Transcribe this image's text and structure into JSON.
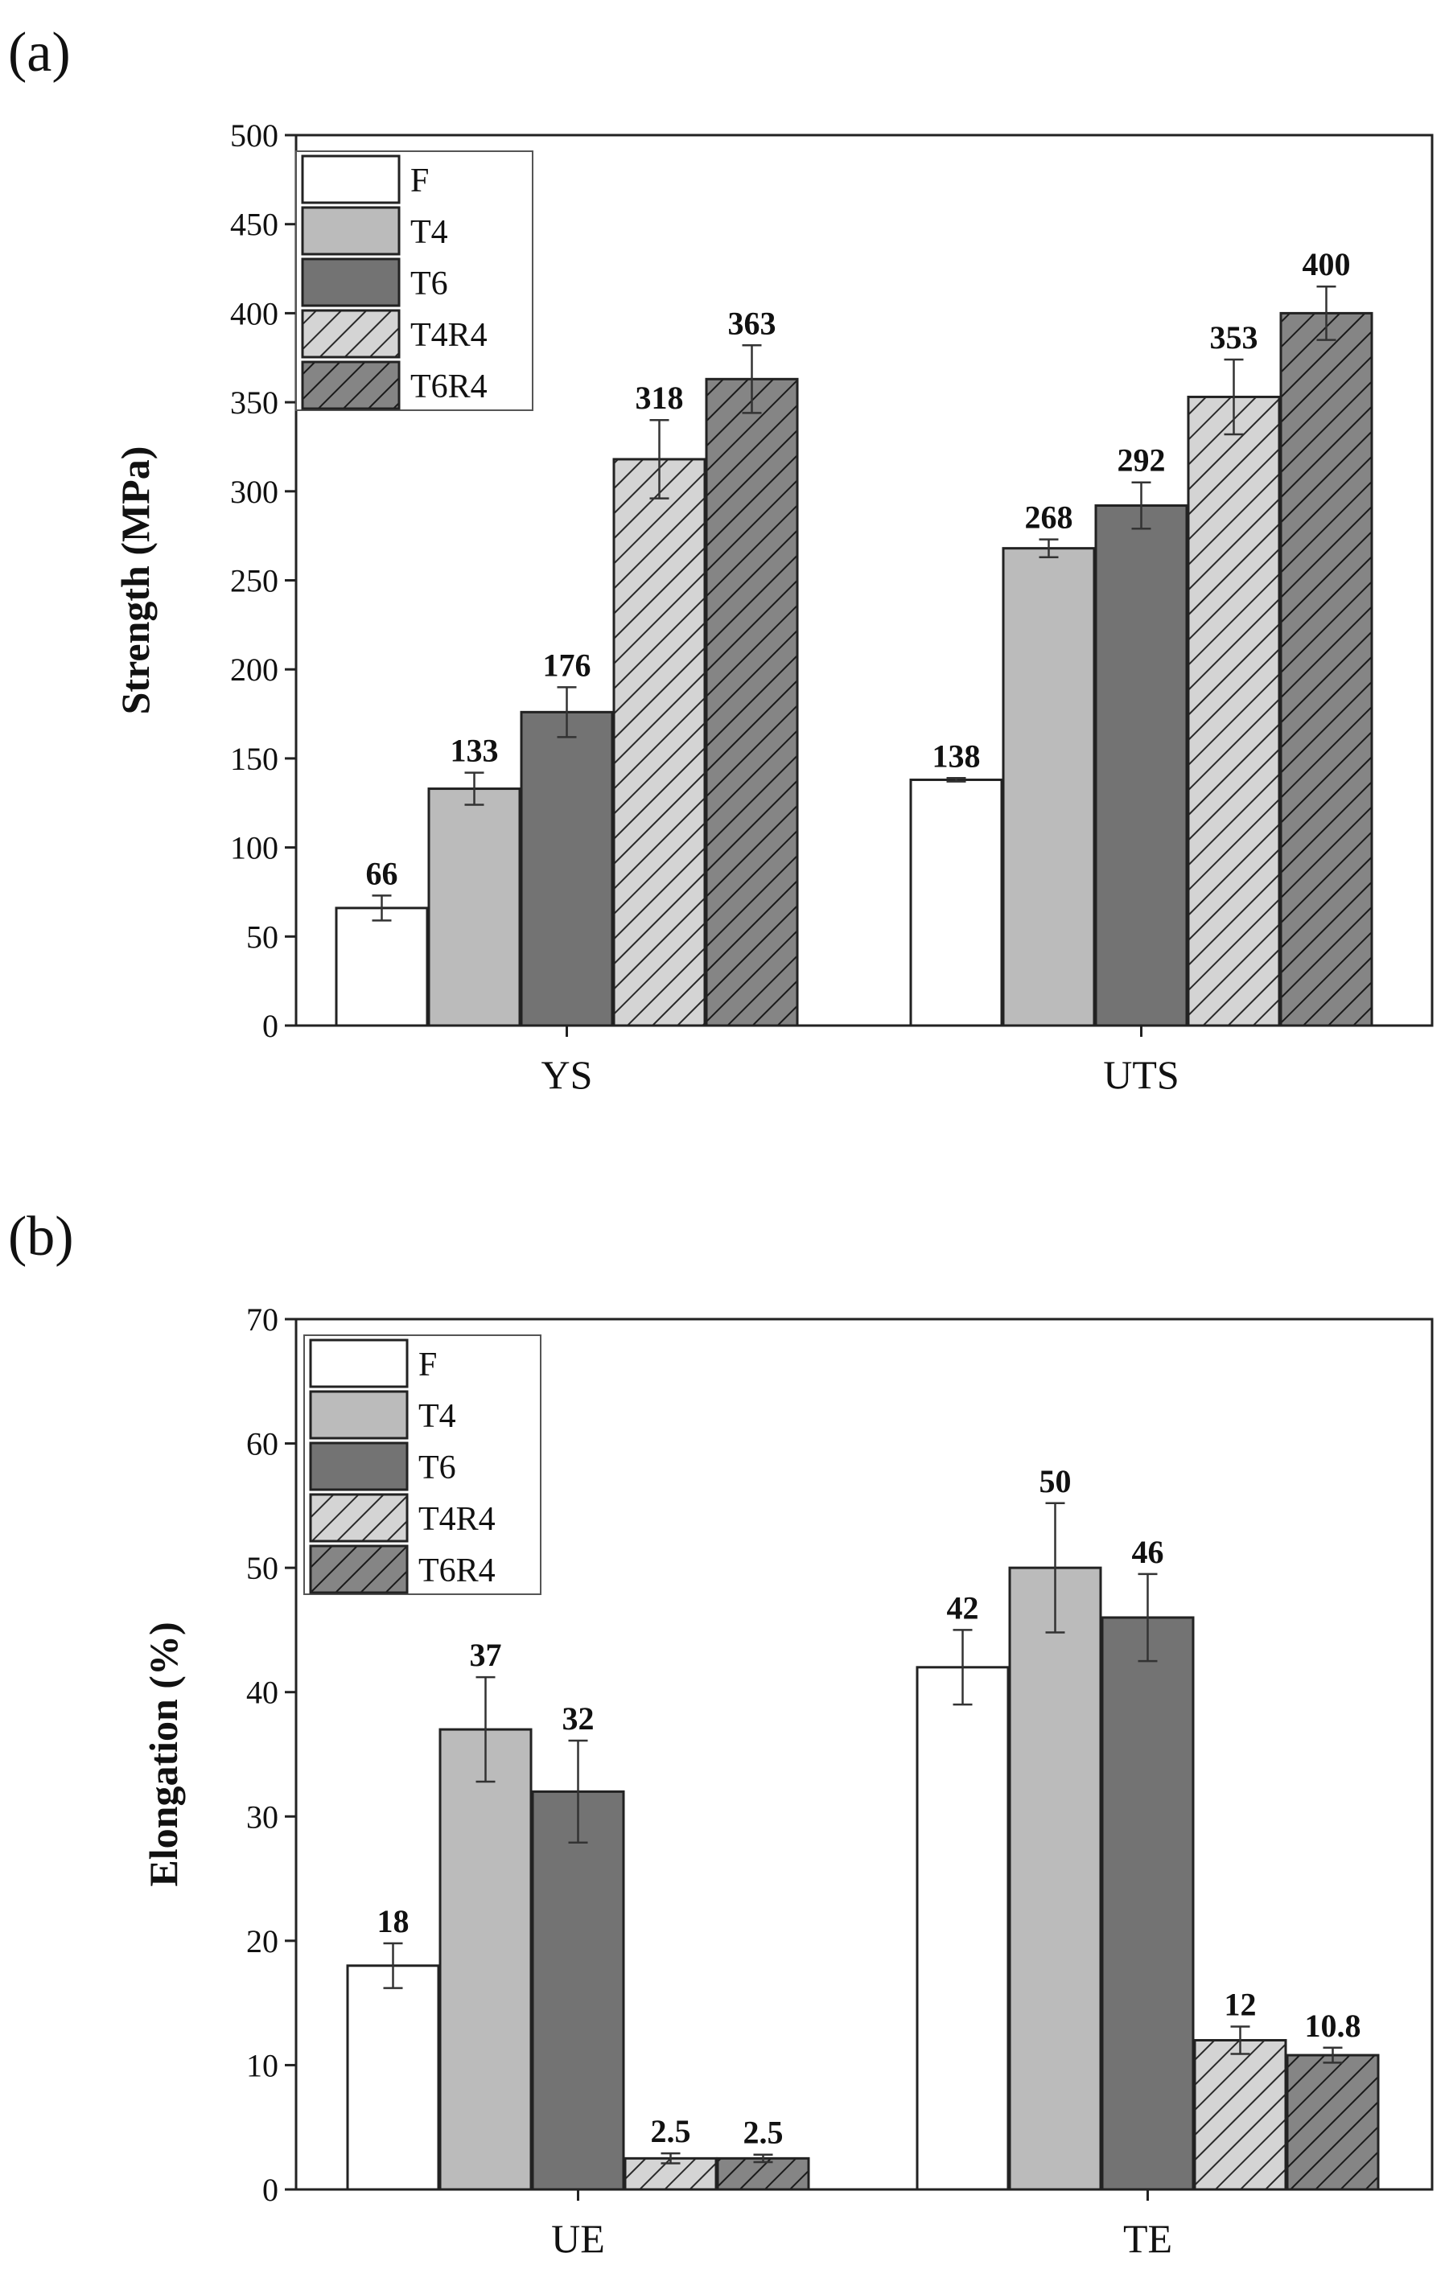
{
  "colors": {
    "F": "#ffffff",
    "T4": "#bbbbbb",
    "T6": "#737373",
    "T4R4": "#d4d4d4",
    "T6R4": "#858585",
    "stroke": "#222222",
    "hatch": "#2a2a2a"
  },
  "chart_data": [
    {
      "panel_label": "(a)",
      "type": "bar",
      "ylabel": "Strength (MPa)",
      "xlabel": "",
      "ylim": [
        0,
        500
      ],
      "yticks": [
        0,
        50,
        100,
        150,
        200,
        250,
        300,
        350,
        400,
        450,
        500
      ],
      "categories": [
        "YS",
        "UTS"
      ],
      "legend_position": "top-left",
      "series": [
        {
          "name": "F",
          "key": "F",
          "hatched": false,
          "values": [
            66,
            138
          ],
          "errors": [
            7,
            1
          ],
          "labels": [
            "66",
            "138"
          ]
        },
        {
          "name": "T4",
          "key": "T4",
          "hatched": false,
          "values": [
            133,
            268
          ],
          "errors": [
            9,
            5
          ],
          "labels": [
            "133",
            "268"
          ]
        },
        {
          "name": "T6",
          "key": "T6",
          "hatched": false,
          "values": [
            176,
            292
          ],
          "errors": [
            14,
            13
          ],
          "labels": [
            "176",
            "292"
          ]
        },
        {
          "name": "T4R4",
          "key": "T4R4",
          "hatched": true,
          "values": [
            318,
            353
          ],
          "errors": [
            22,
            21
          ],
          "labels": [
            "318",
            "353"
          ]
        },
        {
          "name": "T6R4",
          "key": "T6R4",
          "hatched": true,
          "values": [
            363,
            400
          ],
          "errors": [
            19,
            15
          ],
          "labels": [
            "363",
            "400"
          ]
        }
      ]
    },
    {
      "panel_label": "(b)",
      "type": "bar",
      "ylabel": "Elongation (%)",
      "xlabel": "",
      "ylim": [
        0,
        70
      ],
      "yticks": [
        0,
        10,
        20,
        30,
        40,
        50,
        60,
        70
      ],
      "categories": [
        "UE",
        "TE"
      ],
      "legend_position": "top-left",
      "series": [
        {
          "name": "F",
          "key": "F",
          "hatched": false,
          "values": [
            18,
            42
          ],
          "errors": [
            1.8,
            3
          ],
          "labels": [
            "18",
            "42"
          ]
        },
        {
          "name": "T4",
          "key": "T4",
          "hatched": false,
          "values": [
            37,
            50
          ],
          "errors": [
            4.2,
            5.2
          ],
          "labels": [
            "37",
            "50"
          ]
        },
        {
          "name": "T6",
          "key": "T6",
          "hatched": false,
          "values": [
            32,
            46
          ],
          "errors": [
            4.1,
            3.5
          ],
          "labels": [
            "32",
            "46"
          ]
        },
        {
          "name": "T4R4",
          "key": "T4R4",
          "hatched": true,
          "values": [
            2.5,
            12
          ],
          "errors": [
            0.4,
            1.1
          ],
          "labels": [
            "2.5",
            "12"
          ]
        },
        {
          "name": "T6R4",
          "key": "T6R4",
          "hatched": true,
          "values": [
            2.5,
            10.8
          ],
          "errors": [
            0.3,
            0.6
          ],
          "labels": [
            "2.5",
            "10.8"
          ]
        }
      ]
    }
  ]
}
